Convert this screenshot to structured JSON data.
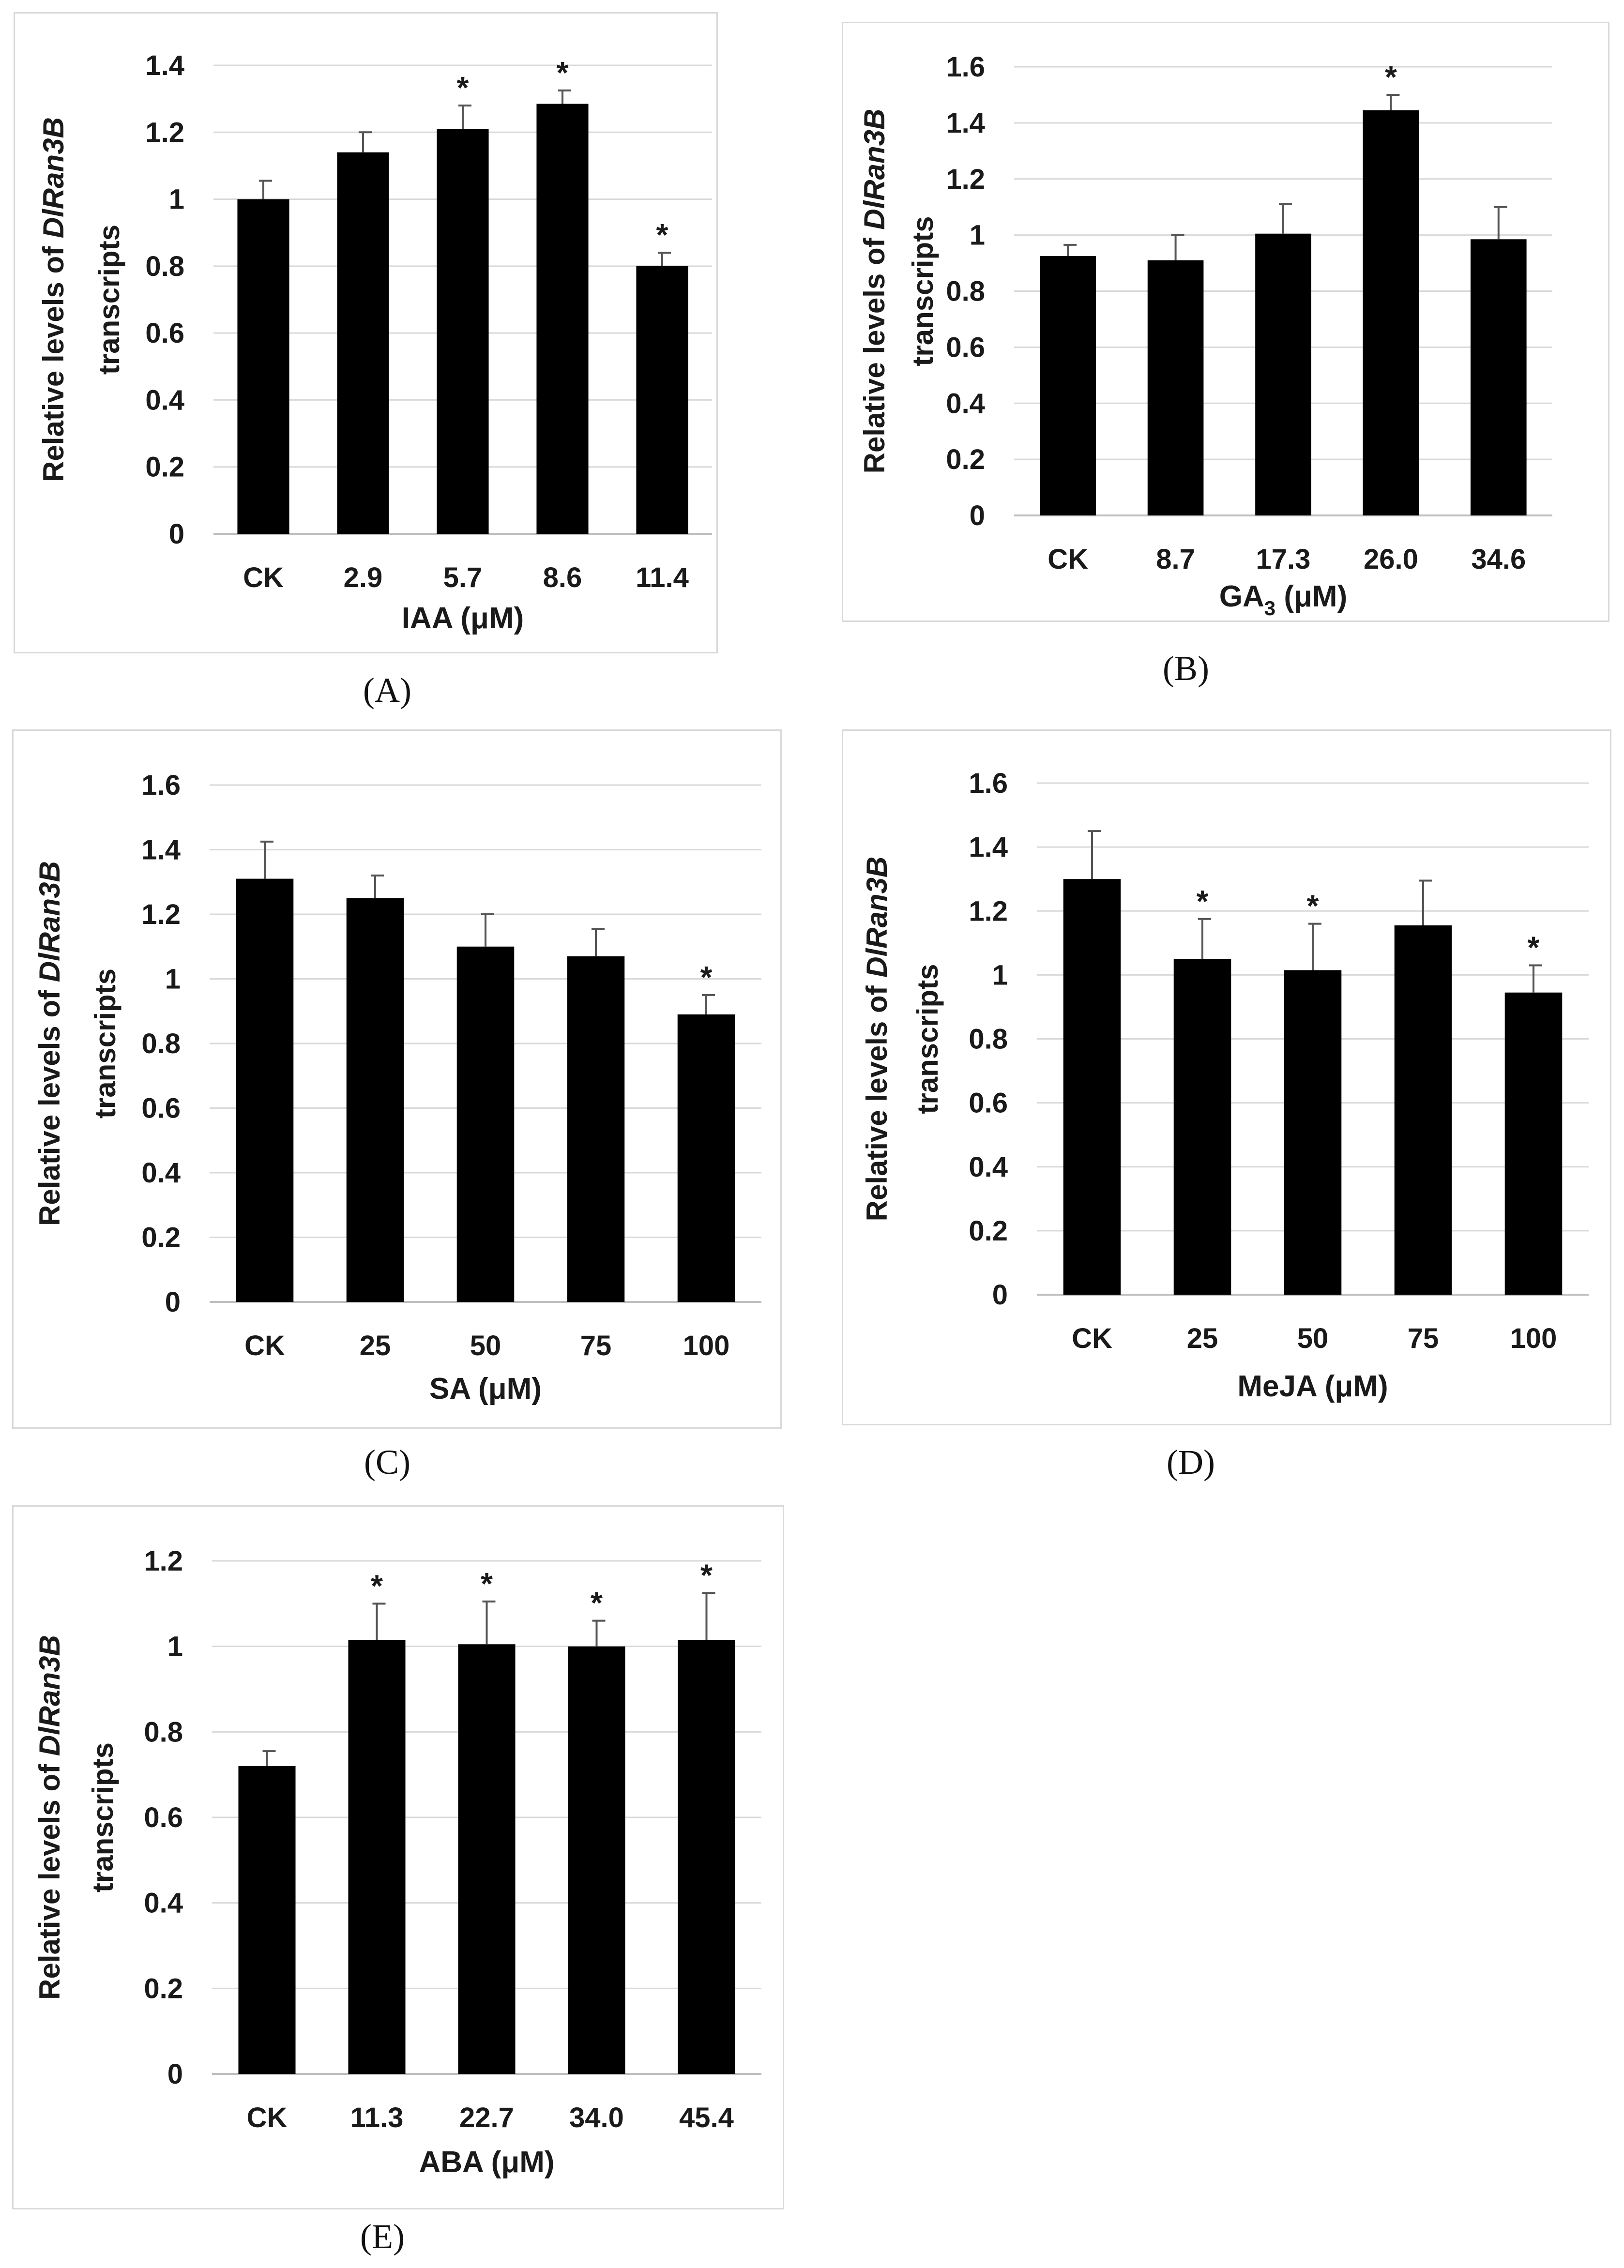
{
  "chart_data": [
    {
      "panel_label": "(A)",
      "type": "bar",
      "categories": [
        "CK",
        "2.9",
        "5.7",
        "8.6",
        "11.4"
      ],
      "values": [
        1.0,
        1.14,
        1.21,
        1.285,
        0.8
      ],
      "errors": [
        0.055,
        0.06,
        0.07,
        0.04,
        0.04
      ],
      "significant": [
        false,
        false,
        true,
        true,
        true
      ],
      "xlabel": "IAA (μM)",
      "ylabel_parts": [
        "Relative levels of ",
        "DlRan3B",
        "transcripts"
      ],
      "ylim": [
        0,
        1.4
      ],
      "yticks": [
        0,
        0.2,
        0.4,
        0.6,
        0.8,
        1,
        1.2,
        1.4
      ],
      "ytick_labels": [
        "0",
        "0.2",
        "0.4",
        "0.6",
        "0.8",
        "1",
        "1.2",
        "1.4"
      ],
      "grid": true
    },
    {
      "panel_label": "(B)",
      "type": "bar",
      "categories": [
        "CK",
        "8.7",
        "17.3",
        "26.0",
        "34.6"
      ],
      "values": [
        0.925,
        0.91,
        1.005,
        1.445,
        0.985
      ],
      "errors": [
        0.04,
        0.09,
        0.105,
        0.055,
        0.115
      ],
      "significant": [
        false,
        false,
        false,
        true,
        false
      ],
      "xlabel_main": "GA",
      "xlabel_sub": "3",
      "xlabel_unit": " (μM)",
      "ylabel_parts": [
        "Relative levels of ",
        "DlRan3B",
        "transcripts"
      ],
      "ylim": [
        0,
        1.6
      ],
      "yticks": [
        0,
        0.2,
        0.4,
        0.6,
        0.8,
        1,
        1.2,
        1.4,
        1.6
      ],
      "ytick_labels": [
        "0",
        "0.2",
        "0.4",
        "0.6",
        "0.8",
        "1",
        "1.2",
        "1.4",
        "1.6"
      ],
      "grid": true
    },
    {
      "panel_label": "(C)",
      "type": "bar",
      "categories": [
        "CK",
        "25",
        "50",
        "75",
        "100"
      ],
      "values": [
        1.31,
        1.25,
        1.1,
        1.07,
        0.89
      ],
      "errors": [
        0.115,
        0.07,
        0.1,
        0.085,
        0.06
      ],
      "significant": [
        false,
        false,
        false,
        false,
        true
      ],
      "xlabel": "SA (μM)",
      "ylabel_parts": [
        "Relative levels of ",
        "DlRan3B",
        "transcripts"
      ],
      "ylim": [
        0,
        1.6
      ],
      "yticks": [
        0,
        0.2,
        0.4,
        0.6,
        0.8,
        1,
        1.2,
        1.4,
        1.6
      ],
      "ytick_labels": [
        "0",
        "0.2",
        "0.4",
        "0.6",
        "0.8",
        "1",
        "1.2",
        "1.4",
        "1.6"
      ],
      "grid": true
    },
    {
      "panel_label": "(D)",
      "type": "bar",
      "categories": [
        "CK",
        "25",
        "50",
        "75",
        "100"
      ],
      "values": [
        1.3,
        1.05,
        1.015,
        1.155,
        0.945
      ],
      "errors": [
        0.15,
        0.125,
        0.145,
        0.14,
        0.085
      ],
      "significant": [
        false,
        true,
        true,
        false,
        true
      ],
      "xlabel": "MeJA (μM)",
      "ylabel_parts": [
        "Relative levels of ",
        "DlRan3B",
        "transcripts"
      ],
      "ylim": [
        0,
        1.6
      ],
      "yticks": [
        0,
        0.2,
        0.4,
        0.6,
        0.8,
        1,
        1.2,
        1.4,
        1.6
      ],
      "ytick_labels": [
        "0",
        "0.2",
        "0.4",
        "0.6",
        "0.8",
        "1",
        "1.2",
        "1.4",
        "1.6"
      ],
      "grid": true
    },
    {
      "panel_label": "(E)",
      "type": "bar",
      "categories": [
        "CK",
        "11.3",
        "22.7",
        "34.0",
        "45.4"
      ],
      "values": [
        0.72,
        1.015,
        1.005,
        1.0,
        1.015
      ],
      "errors": [
        0.035,
        0.085,
        0.1,
        0.06,
        0.11
      ],
      "significant": [
        false,
        true,
        true,
        true,
        true
      ],
      "xlabel": "ABA (μM)",
      "ylabel_parts": [
        "Relative levels of ",
        "DlRan3B",
        "transcripts"
      ],
      "ylim": [
        0,
        1.2
      ],
      "yticks": [
        0,
        0.2,
        0.4,
        0.6,
        0.8,
        1,
        1.2
      ],
      "ytick_labels": [
        "0",
        "0.2",
        "0.4",
        "0.6",
        "0.8",
        "1",
        "1.2"
      ],
      "grid": true
    }
  ],
  "significance_marker": "*",
  "colors": {
    "bar": "#000000",
    "grid": "#d9d9d9",
    "axis": "#bfbfbf",
    "error": "#555555"
  }
}
